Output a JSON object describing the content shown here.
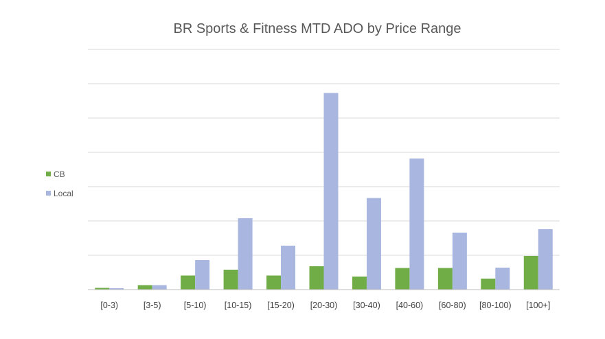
{
  "chart_data": {
    "type": "bar",
    "title": "BR Sports & Fitness MTD ADO by Price Range",
    "xlabel": "",
    "ylabel": "",
    "categories": [
      "[0-3)",
      "[3-5)",
      "[5-10)",
      "[10-15)",
      "[15-20)",
      "[20-30)",
      "[30-40)",
      "[40-60)",
      "[60-80)",
      "[80-100)",
      "[100+]"
    ],
    "series": [
      {
        "name": "CB",
        "color": "#70ad47",
        "values": [
          0.5,
          1.3,
          4.1,
          5.8,
          4.1,
          6.8,
          3.8,
          6.3,
          6.3,
          3.2,
          9.8
        ]
      },
      {
        "name": "Local",
        "color": "#a9b7e0",
        "values": [
          0.4,
          1.3,
          8.6,
          20.8,
          12.8,
          57.3,
          26.7,
          38.2,
          16.6,
          6.4,
          17.6
        ]
      }
    ],
    "ylim": [
      0,
      70
    ],
    "grid": true,
    "y_tick_labels_visible": false,
    "legend_position": "left"
  }
}
